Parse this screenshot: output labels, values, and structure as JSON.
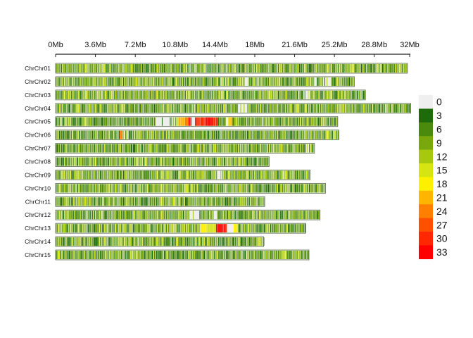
{
  "chart_data": {
    "type": "heatmap",
    "title": "",
    "xlabel": "",
    "ylabel": "",
    "x_unit": "Mb",
    "xlim": [
      0,
      32.5
    ],
    "x_ticks": [
      {
        "value": 0,
        "label": "0Mb"
      },
      {
        "value": 3.6,
        "label": "3.6Mb"
      },
      {
        "value": 7.2,
        "label": "7.2Mb"
      },
      {
        "value": 10.8,
        "label": "10.8Mb"
      },
      {
        "value": 14.4,
        "label": "14.4Mb"
      },
      {
        "value": 18,
        "label": "18Mb"
      },
      {
        "value": 21.6,
        "label": "21.6Mb"
      },
      {
        "value": 25.2,
        "label": "25.2Mb"
      },
      {
        "value": 28.8,
        "label": "28.8Mb"
      },
      {
        "value": 32,
        "label": "32Mb"
      }
    ],
    "axis_position": "top",
    "legend_position": "right",
    "legend": {
      "levels": [
        {
          "label": "0",
          "color": "#efefef"
        },
        {
          "label": "3",
          "color": "#1e6b0a"
        },
        {
          "label": "6",
          "color": "#4a8a0c"
        },
        {
          "label": "9",
          "color": "#78a80e"
        },
        {
          "label": "12",
          "color": "#a8c810"
        },
        {
          "label": "15",
          "color": "#d6e412"
        },
        {
          "label": "18",
          "color": "#fff000"
        },
        {
          "label": "21",
          "color": "#ffb400"
        },
        {
          "label": "24",
          "color": "#ff7f00"
        },
        {
          "label": "27",
          "color": "#ff4f00"
        },
        {
          "label": "30",
          "color": "#ff2800"
        },
        {
          "label": "33",
          "color": "#ff0000"
        }
      ]
    },
    "bin_size_mb": 0.1,
    "chromosomes": [
      {
        "name": "ChrChr01",
        "length_mb": 31.8,
        "gaps": [],
        "hotspots": []
      },
      {
        "name": "ChrChr02",
        "length_mb": 27.0,
        "gaps": [
          [
            17.0,
            17.3
          ],
          [
            23.3,
            23.6
          ],
          [
            24.2,
            24.9
          ]
        ],
        "hotspots": []
      },
      {
        "name": "ChrChr03",
        "length_mb": 28.0,
        "gaps": [
          [
            22.4,
            23.0
          ]
        ],
        "hotspots": []
      },
      {
        "name": "ChrChr04",
        "length_mb": 32.1,
        "gaps": [
          [
            16.4,
            17.2
          ]
        ],
        "hotspots": []
      },
      {
        "name": "ChrChr05",
        "length_mb": 25.5,
        "gaps": [
          [
            9.0,
            10.8
          ],
          [
            12.2,
            12.5
          ],
          [
            15.3,
            15.6
          ]
        ],
        "hotspots": [
          {
            "start": 11.0,
            "end": 11.6,
            "level": 21
          },
          {
            "start": 11.6,
            "end": 11.9,
            "level": 24
          },
          {
            "start": 11.9,
            "end": 12.6,
            "level": 33
          },
          {
            "start": 12.6,
            "end": 13.4,
            "level": 30
          },
          {
            "start": 13.4,
            "end": 14.1,
            "level": 33
          },
          {
            "start": 14.1,
            "end": 14.6,
            "level": 30
          },
          {
            "start": 15.5,
            "end": 15.9,
            "level": 21
          }
        ]
      },
      {
        "name": "ChrChr06",
        "length_mb": 25.6,
        "gaps": [
          [
            6.1,
            6.5
          ]
        ],
        "hotspots": [
          {
            "start": 5.7,
            "end": 5.9,
            "level": 24
          },
          {
            "start": 6.0,
            "end": 6.2,
            "level": 21
          }
        ]
      },
      {
        "name": "ChrChr07",
        "length_mb": 23.4,
        "gaps": [
          [
            22.6,
            23.0
          ]
        ],
        "hotspots": []
      },
      {
        "name": "ChrChr08",
        "length_mb": 19.3,
        "gaps": [],
        "hotspots": []
      },
      {
        "name": "ChrChr09",
        "length_mb": 23.0,
        "gaps": [
          [
            14.5,
            15.0
          ]
        ],
        "hotspots": []
      },
      {
        "name": "ChrChr10",
        "length_mb": 24.4,
        "gaps": [],
        "hotspots": [
          {
            "start": 11.6,
            "end": 11.9,
            "level": 15
          },
          {
            "start": 12.1,
            "end": 12.3,
            "level": 15
          }
        ]
      },
      {
        "name": "ChrChr11",
        "length_mb": 18.9,
        "gaps": [],
        "hotspots": []
      },
      {
        "name": "ChrChr12",
        "length_mb": 23.9,
        "gaps": [
          [
            12.0,
            12.9
          ],
          [
            14.2,
            14.5
          ]
        ],
        "hotspots": []
      },
      {
        "name": "ChrChr13",
        "length_mb": 22.6,
        "gaps": [
          [
            15.4,
            16.0
          ]
        ],
        "hotspots": [
          {
            "start": 13.0,
            "end": 13.6,
            "level": 18
          },
          {
            "start": 13.6,
            "end": 14.4,
            "level": 15
          },
          {
            "start": 14.4,
            "end": 15.2,
            "level": 33
          },
          {
            "start": 15.2,
            "end": 15.4,
            "level": 30
          },
          {
            "start": 15.5,
            "end": 15.9,
            "level": 21
          },
          {
            "start": 16.0,
            "end": 16.4,
            "level": 18
          }
        ]
      },
      {
        "name": "ChrChr14",
        "length_mb": 18.8,
        "gaps": [],
        "hotspots": []
      },
      {
        "name": "ChrChr15",
        "length_mb": 22.9,
        "gaps": [],
        "hotspots": []
      }
    ]
  }
}
